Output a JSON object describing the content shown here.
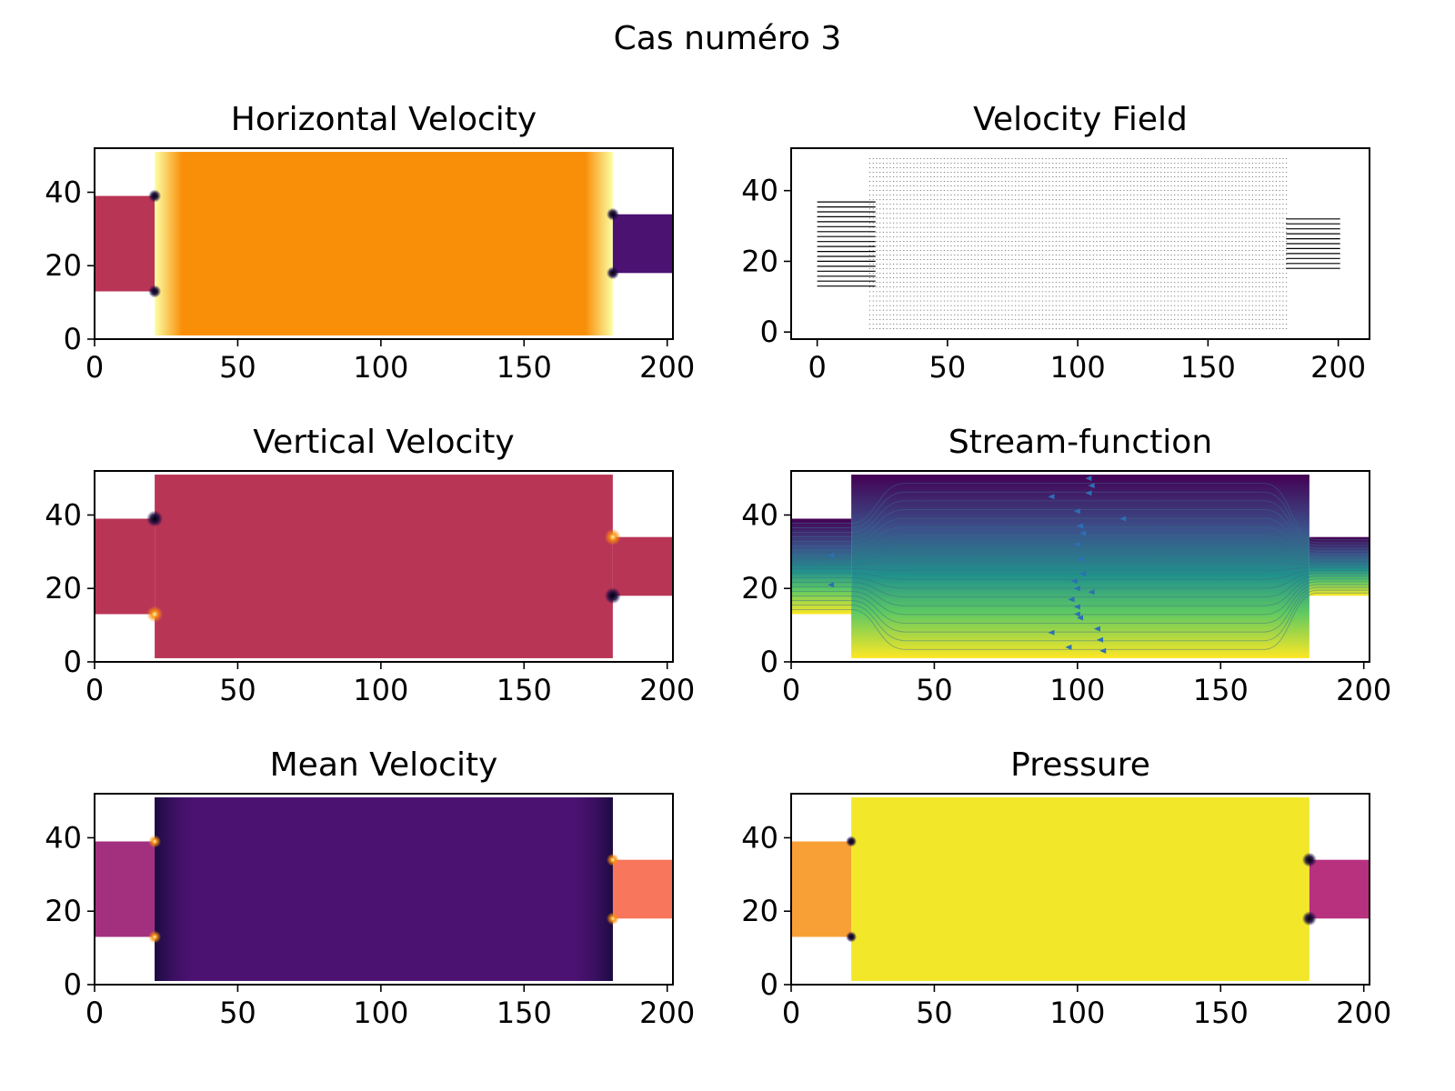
{
  "figure": {
    "suptitle": "Cas numéro 3"
  },
  "colors": {
    "inferno_dark": "#1a0b40",
    "inferno_purple": "#4b1272",
    "inferno_red": "#b93556",
    "inferno_orange": "#f98e09",
    "inferno_yellow": "#fcffa4",
    "viridis_purple": "#440154",
    "viridis_teal": "#21918c",
    "viridis_green": "#5ec962",
    "viridis_yellow": "#fde725",
    "quiver_blue": "#2c6fb5",
    "grid_black": "#000000"
  },
  "chart_data": [
    {
      "id": "horizontal-velocity",
      "type": "heatmap",
      "title": "Horizontal Velocity",
      "xlim": [
        0,
        202
      ],
      "ylim": [
        0,
        52
      ],
      "xticks": [
        0,
        50,
        100,
        150,
        200
      ],
      "yticks": [
        0,
        20,
        40
      ],
      "regions": [
        {
          "x": [
            0,
            21
          ],
          "y": [
            13,
            39
          ],
          "color": "#b93556"
        },
        {
          "x": [
            21,
            181
          ],
          "y": [
            1,
            51
          ],
          "color": "#f98e09"
        },
        {
          "x": [
            181,
            202
          ],
          "y": [
            18,
            34
          ],
          "color": "#4b1272"
        }
      ]
    },
    {
      "id": "velocity-field",
      "type": "quiver",
      "title": "Velocity Field",
      "xlim": [
        -10,
        212
      ],
      "ylim": [
        -2,
        52
      ],
      "xticks": [
        0,
        50,
        100,
        150,
        200
      ],
      "yticks": [
        0,
        20,
        40
      ],
      "regions": [
        {
          "x": [
            0,
            20
          ],
          "y": [
            13,
            38
          ],
          "density": "dense"
        },
        {
          "x": [
            20,
            180
          ],
          "y": [
            1,
            50
          ],
          "density": "sparse"
        },
        {
          "x": [
            180,
            199
          ],
          "y": [
            18,
            33
          ],
          "density": "dense"
        }
      ]
    },
    {
      "id": "vertical-velocity",
      "type": "heatmap",
      "title": "Vertical Velocity",
      "xlim": [
        0,
        202
      ],
      "ylim": [
        0,
        52
      ],
      "xticks": [
        0,
        50,
        100,
        150,
        200
      ],
      "yticks": [
        0,
        20,
        40
      ],
      "regions": [
        {
          "x": [
            0,
            21
          ],
          "y": [
            13,
            39
          ],
          "color": "#b93556"
        },
        {
          "x": [
            21,
            181
          ],
          "y": [
            1,
            51
          ],
          "color": "#b93556"
        },
        {
          "x": [
            181,
            202
          ],
          "y": [
            18,
            34
          ],
          "color": "#b93556"
        }
      ]
    },
    {
      "id": "stream-function",
      "type": "contour",
      "title": "Stream-function",
      "xlim": [
        0,
        202
      ],
      "ylim": [
        0,
        52
      ],
      "xticks": [
        0,
        50,
        100,
        150,
        200
      ],
      "yticks": [
        0,
        20,
        40
      ],
      "regions": [
        {
          "x": [
            0,
            21
          ],
          "y": [
            13,
            39
          ]
        },
        {
          "x": [
            21,
            181
          ],
          "y": [
            1,
            51
          ]
        },
        {
          "x": [
            181,
            202
          ],
          "y": [
            18,
            34
          ]
        }
      ]
    },
    {
      "id": "mean-velocity",
      "type": "heatmap",
      "title": "Mean Velocity",
      "xlim": [
        0,
        202
      ],
      "ylim": [
        0,
        52
      ],
      "xticks": [
        0,
        50,
        100,
        150,
        200
      ],
      "yticks": [
        0,
        20,
        40
      ],
      "regions": [
        {
          "x": [
            0,
            21
          ],
          "y": [
            13,
            39
          ],
          "color": "#a3307e"
        },
        {
          "x": [
            21,
            181
          ],
          "y": [
            1,
            51
          ],
          "color": "#4b1272"
        },
        {
          "x": [
            181,
            202
          ],
          "y": [
            18,
            34
          ],
          "color": "#f8765c"
        }
      ]
    },
    {
      "id": "pressure",
      "type": "heatmap",
      "title": "Pressure",
      "xlim": [
        0,
        202
      ],
      "ylim": [
        0,
        52
      ],
      "xticks": [
        0,
        50,
        100,
        150,
        200
      ],
      "yticks": [
        0,
        20,
        40
      ],
      "regions": [
        {
          "x": [
            0,
            21
          ],
          "y": [
            13,
            39
          ],
          "color": "#f8a035"
        },
        {
          "x": [
            21,
            181
          ],
          "y": [
            1,
            51
          ],
          "color": "#f2e829"
        },
        {
          "x": [
            181,
            202
          ],
          "y": [
            18,
            34
          ],
          "color": "#b8317f"
        }
      ]
    }
  ]
}
